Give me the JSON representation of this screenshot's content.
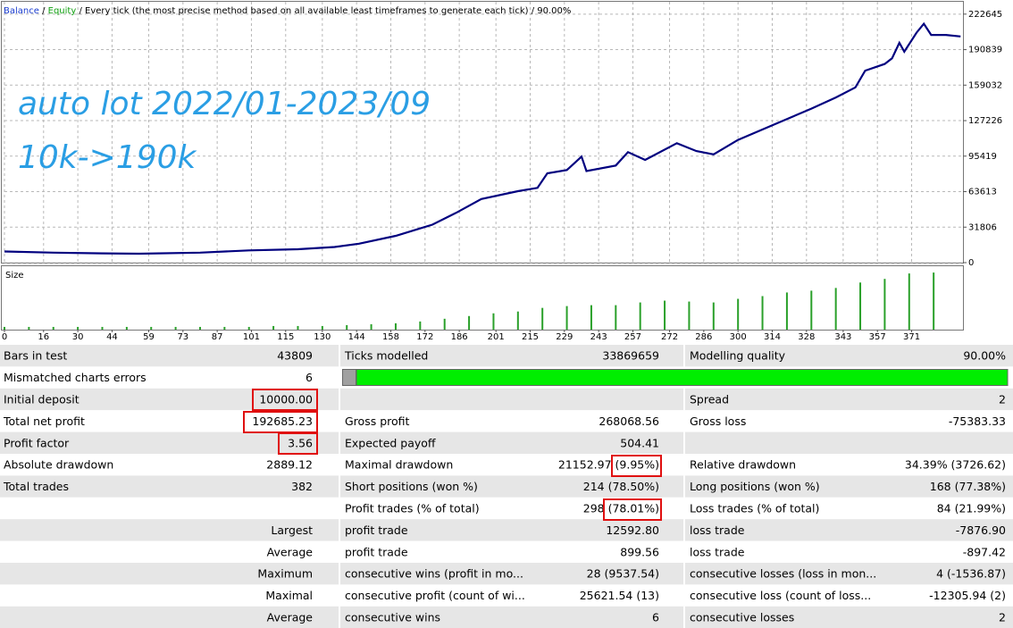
{
  "header": {
    "balance": "Balance",
    "equity": "Equity",
    "separator": " / ",
    "method": "Every tick (the most precise method based on all available least timeframes to generate each tick)",
    "quality": "90.00%"
  },
  "annotations": [
    "auto lot 2022/01-2023/09",
    "10k->190k"
  ],
  "chart_data": [
    {
      "type": "line",
      "color": "#00007f",
      "x": [
        0,
        20,
        40,
        55,
        80,
        100,
        120,
        135,
        145,
        160,
        175,
        185,
        195,
        210,
        218,
        222,
        230,
        236,
        238,
        250,
        255,
        262,
        275,
        283,
        290,
        300,
        315,
        330,
        340,
        348,
        352,
        360,
        363,
        366,
        368,
        373,
        376,
        379,
        385,
        391
      ],
      "values": [
        10000,
        9000,
        8300,
        8000,
        9000,
        11000,
        12000,
        14000,
        17000,
        24000,
        34000,
        45000,
        57000,
        64000,
        67000,
        80000,
        83000,
        95000,
        82000,
        87000,
        99000,
        92000,
        107000,
        100000,
        97000,
        110000,
        124000,
        138000,
        148000,
        157000,
        172000,
        178000,
        183000,
        197000,
        189000,
        206000,
        214000,
        204000,
        204000,
        202685
      ],
      "xlim": [
        0,
        392
      ],
      "ylim": [
        0,
        233700
      ],
      "yticks": [
        0,
        31806,
        63613,
        95419,
        127226,
        159032,
        190839,
        222645
      ],
      "grid": true
    },
    {
      "type": "bar",
      "title": "Size",
      "color": "#2aa02a",
      "x": [
        0,
        10,
        20,
        30,
        40,
        50,
        60,
        70,
        80,
        90,
        100,
        110,
        120,
        130,
        140,
        150,
        160,
        170,
        180,
        190,
        200,
        210,
        220,
        230,
        240,
        250,
        260,
        270,
        280,
        290,
        300,
        310,
        320,
        330,
        340,
        350,
        360,
        370,
        380
      ],
      "values": [
        0.03,
        0.03,
        0.03,
        0.03,
        0.03,
        0.03,
        0.03,
        0.03,
        0.03,
        0.03,
        0.03,
        0.04,
        0.04,
        0.04,
        0.05,
        0.06,
        0.07,
        0.09,
        0.12,
        0.15,
        0.18,
        0.2,
        0.24,
        0.26,
        0.27,
        0.27,
        0.3,
        0.32,
        0.31,
        0.3,
        0.34,
        0.37,
        0.41,
        0.43,
        0.46,
        0.52,
        0.56,
        0.62,
        0.63
      ],
      "xlim": [
        0,
        392
      ],
      "ylim": [
        0,
        0.7
      ],
      "xticks": [
        0,
        16,
        30,
        44,
        59,
        73,
        87,
        101,
        115,
        130,
        144,
        158,
        172,
        186,
        201,
        215,
        229,
        243,
        257,
        272,
        286,
        300,
        314,
        328,
        343,
        357,
        371
      ]
    }
  ],
  "table": {
    "rows": [
      [
        "Bars in test",
        "43809",
        "Ticks modelled",
        "33869659",
        "Modelling quality",
        "90.00%"
      ],
      [
        "Mismatched charts errors",
        "6",
        null,
        null,
        null,
        null
      ],
      [
        "Initial deposit",
        "10000.00",
        null,
        null,
        "Spread",
        "2"
      ],
      [
        "Total net profit",
        "192685.23",
        "Gross profit",
        "268068.56",
        "Gross loss",
        "-75383.33"
      ],
      [
        "Profit factor",
        "3.56",
        "Expected payoff",
        "504.41",
        null,
        null
      ],
      [
        "Absolute drawdown",
        "2889.12",
        "Maximal drawdown",
        "21152.97 (9.95%)",
        "Relative drawdown",
        "34.39% (3726.62)"
      ],
      [
        "Total trades",
        "382",
        "Short positions (won %)",
        "214 (78.50%)",
        "Long positions (won %)",
        "168 (77.38%)"
      ],
      [
        null,
        null,
        "Profit trades (% of total)",
        "298 (78.01%)",
        "Loss trades (% of total)",
        "84 (21.99%)"
      ],
      [
        null,
        "Largest",
        "profit trade",
        "12592.80",
        "loss trade",
        "-7876.90"
      ],
      [
        null,
        "Average",
        "profit trade",
        "899.56",
        "loss trade",
        "-897.42"
      ],
      [
        null,
        "Maximum",
        "consecutive wins (profit in mo...",
        "28 (9537.54)",
        "consecutive losses (loss in mon...",
        "4 (-1536.87)"
      ],
      [
        null,
        "Maximal",
        "consecutive profit (count of wi...",
        "25621.54 (13)",
        "consecutive loss (count of loss...",
        "-12305.94 (2)"
      ],
      [
        null,
        "Average",
        "consecutive wins",
        "6",
        "consecutive losses",
        "2"
      ]
    ]
  }
}
